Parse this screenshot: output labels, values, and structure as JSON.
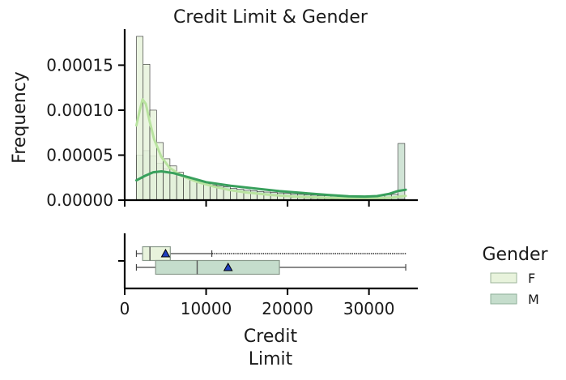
{
  "chart_data": {
    "type": "histogram",
    "title": "Credit Limit & Gender",
    "xlabel": [
      "Credit",
      "Limit"
    ],
    "ylabel": "Frequency",
    "xlim": [
      0,
      36000
    ],
    "ylim": [
      0,
      0.00019
    ],
    "xticks": [
      "0",
      "10000",
      "20000",
      "30000"
    ],
    "xtick_values": [
      0,
      10000,
      20000,
      30000
    ],
    "yticks": [
      "0.00000",
      "0.00005",
      "0.00010",
      "0.00015"
    ],
    "ytick_values": [
      0,
      5e-05,
      0.0001,
      0.00015
    ],
    "grid": false,
    "legend": {
      "title": "Gender",
      "placement": "right",
      "entries": [
        "F",
        "M"
      ]
    },
    "colors": {
      "F": "#e8f3dc",
      "M": "#c5ddcc",
      "kde_F": "#b9e3a0",
      "kde_M": "#38a05c",
      "mean_marker": "#1f3fbf",
      "axis": "#000000"
    },
    "bins": {
      "start": 1438,
      "width": 824,
      "count": 40
    },
    "series": [
      {
        "name": "F",
        "values": [
          0.000182,
          0.000151,
          0.0001,
          6.4e-05,
          4.6e-05,
          3.8e-05,
          3.1e-05,
          2.6e-05,
          2.3e-05,
          2e-05,
          1.8e-05,
          1.6e-05,
          1.4e-05,
          1.2e-05,
          1.1e-05,
          9.5e-06,
          8.5e-06,
          7.5e-06,
          6.5e-06,
          5.8e-06,
          5e-06,
          4.5e-06,
          3.8e-06,
          3.2e-06,
          2.8e-06,
          2.4e-06,
          2e-06,
          1.8e-06,
          1.5e-06,
          1.3e-06,
          1.2e-06,
          1e-06,
          9e-07,
          8e-07,
          7e-07,
          6e-07,
          6e-07,
          5e-07,
          5e-07,
          1e-06
        ],
        "kde": [
          [
            1438,
            8.3e-05
          ],
          [
            1800,
            9.8e-05
          ],
          [
            2200,
            0.000112
          ],
          [
            2600,
            0.000107
          ],
          [
            3000,
            9e-05
          ],
          [
            3600,
            6.8e-05
          ],
          [
            4500,
            4.8e-05
          ],
          [
            5500,
            3.6e-05
          ],
          [
            7000,
            2.7e-05
          ],
          [
            9000,
            2e-05
          ],
          [
            11000,
            1.5e-05
          ],
          [
            13000,
            1.1e-05
          ],
          [
            15000,
            8.5e-06
          ],
          [
            18000,
            5.8e-06
          ],
          [
            21000,
            4e-06
          ],
          [
            24000,
            3e-06
          ],
          [
            27000,
            2.2e-06
          ],
          [
            30000,
            1.8e-06
          ],
          [
            33000,
            3e-06
          ],
          [
            34516,
            4.8e-06
          ]
        ]
      },
      {
        "name": "M",
        "values": [
          5e-05,
          5.5e-05,
          4.9e-05,
          4.1e-05,
          3.5e-05,
          3.1e-05,
          2.8e-05,
          2.5e-05,
          2.3e-05,
          2.1e-05,
          1.9e-05,
          1.7e-05,
          1.6e-05,
          1.5e-05,
          1.3e-05,
          1.2e-05,
          1.1e-05,
          1.05e-05,
          9.5e-06,
          9e-06,
          8.5e-06,
          8e-06,
          7.5e-06,
          7e-06,
          6.5e-06,
          6e-06,
          5.5e-06,
          5e-06,
          4.8e-06,
          4.5e-06,
          4.2e-06,
          4e-06,
          4e-06,
          4.2e-06,
          4.5e-06,
          5e-06,
          5.5e-06,
          6e-06,
          6.5e-06,
          6.3e-05
        ],
        "kde": [
          [
            1438,
            2.2e-05
          ],
          [
            2500,
            2.7e-05
          ],
          [
            3500,
            3.1e-05
          ],
          [
            4500,
            3.2e-05
          ],
          [
            6000,
            3e-05
          ],
          [
            8000,
            2.5e-05
          ],
          [
            10000,
            2e-05
          ],
          [
            13000,
            1.6e-05
          ],
          [
            16000,
            1.3e-05
          ],
          [
            19000,
            1e-05
          ],
          [
            22000,
            7.8e-06
          ],
          [
            25000,
            5.8e-06
          ],
          [
            27500,
            4.2e-06
          ],
          [
            29500,
            4e-06
          ],
          [
            31000,
            4.5e-06
          ],
          [
            32500,
            7e-06
          ],
          [
            33500,
            1e-05
          ],
          [
            34516,
            1.15e-05
          ]
        ]
      }
    ],
    "boxplots": [
      {
        "name": "F",
        "whisker_low": 1438,
        "q1": 2200,
        "median": 3100,
        "q3": 5600,
        "whisker_high": 10700,
        "mean": 5020,
        "outlier_range": [
          10800,
          34516
        ]
      },
      {
        "name": "M",
        "whisker_low": 1438,
        "q1": 3800,
        "median": 8900,
        "q3": 19000,
        "whisker_high": 34516,
        "mean": 12700,
        "outlier_range": []
      }
    ]
  }
}
